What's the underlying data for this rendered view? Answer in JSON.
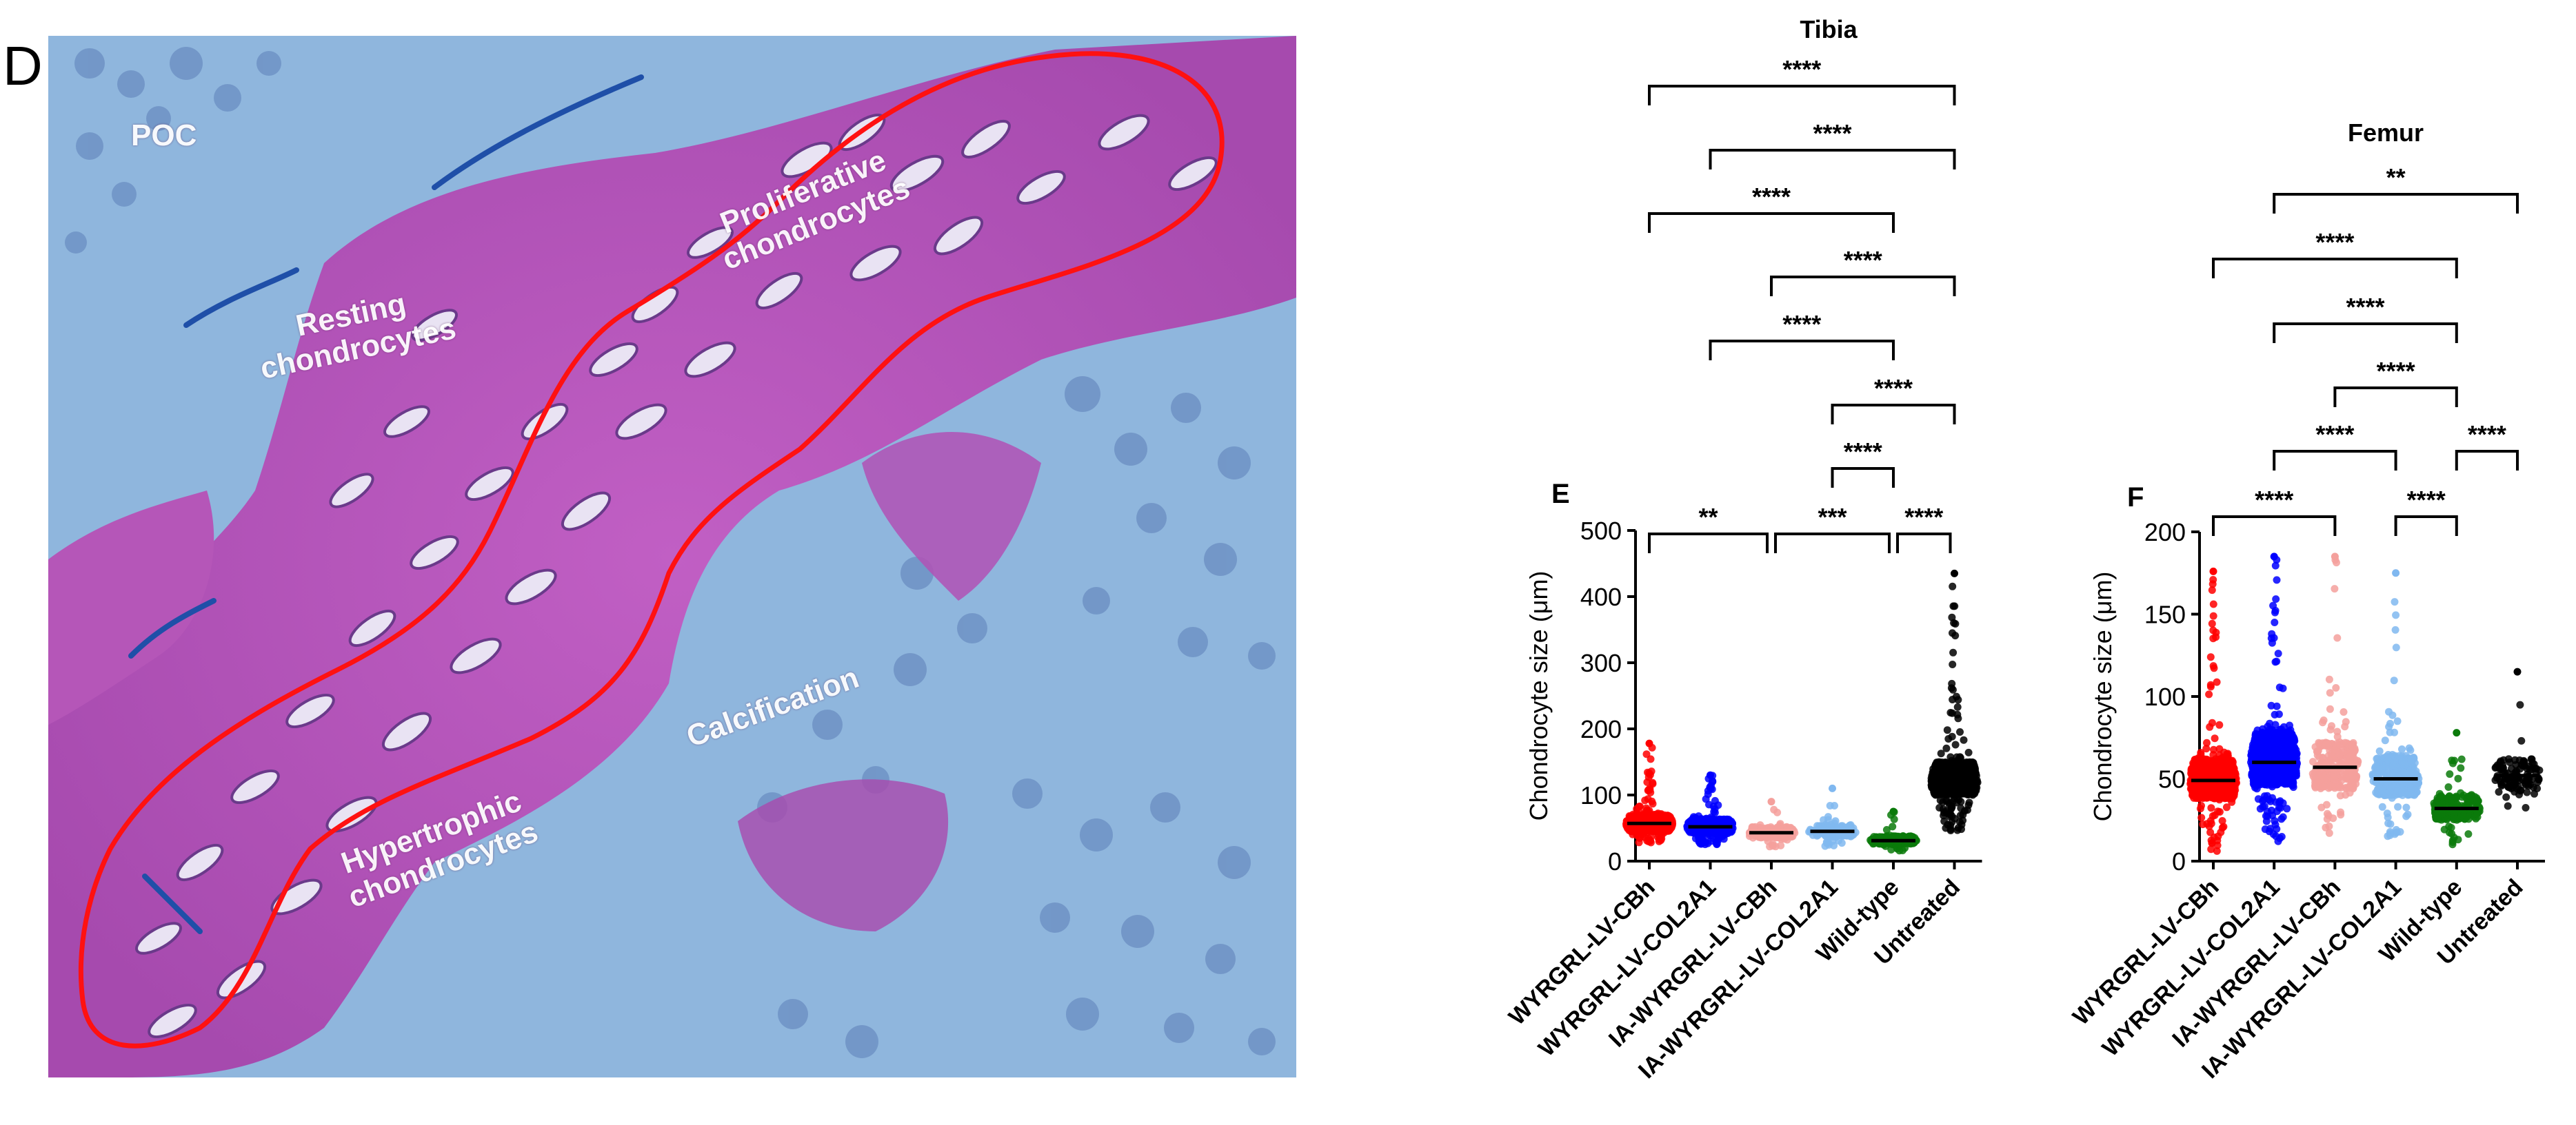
{
  "panel_labels": {
    "d": "D",
    "e": "E",
    "f": "F"
  },
  "micrograph_labels": {
    "poc": "POC",
    "resting": "Resting\nchondrocytes",
    "proliferative": "Proliferative\nchondrocytes",
    "calcification": "Calcification",
    "hypertrophic": "Hypertrophic\nchondrocytes"
  },
  "chart_data": [
    {
      "type": "scatter",
      "subtype": "dot-plot",
      "panel": "E",
      "title": "Tibia",
      "xlabel": "",
      "ylabel": "Chondrocyte size (μm)",
      "ylim": [
        0,
        500
      ],
      "yticks": [
        0,
        100,
        200,
        300,
        400,
        500
      ],
      "categories": [
        "WYRGRL-LV-CBh",
        "WYRGRL-LV-COL2A1",
        "IA-WYRGRL-LV-CBh",
        "IA-WYRGRL-LV-COL2A1",
        "Wild-type",
        "Untreated"
      ],
      "series": [
        {
          "color": "#ff0000",
          "median": 57,
          "min": 28,
          "q1": 45,
          "q3": 70,
          "max": 178,
          "n": 700
        },
        {
          "color": "#0000ff",
          "median": 52,
          "min": 25,
          "q1": 42,
          "q3": 64,
          "max": 130,
          "n": 550
        },
        {
          "color": "#f4a09c",
          "median": 43,
          "min": 22,
          "q1": 35,
          "q3": 52,
          "max": 90,
          "n": 160
        },
        {
          "color": "#80b8f0",
          "median": 45,
          "min": 22,
          "q1": 37,
          "q3": 54,
          "max": 110,
          "n": 160
        },
        {
          "color": "#0a7a0a",
          "median": 31,
          "min": 15,
          "q1": 26,
          "q3": 38,
          "max": 75,
          "n": 220
        },
        {
          "color": "#000000",
          "median": 122,
          "min": 45,
          "q1": 100,
          "q3": 150,
          "max": 435,
          "n": 800
        }
      ],
      "significance": [
        {
          "from": 0,
          "to": 5,
          "label": "****"
        },
        {
          "from": 1,
          "to": 5,
          "label": "****"
        },
        {
          "from": 0,
          "to": 4,
          "label": "****"
        },
        {
          "from": 2,
          "to": 5,
          "label": "****"
        },
        {
          "from": 1,
          "to": 4,
          "label": "****"
        },
        {
          "from": 3,
          "to": 5,
          "label": "****"
        },
        {
          "from": 3,
          "to": 4,
          "label": "****"
        },
        {
          "from": 0,
          "to": 2,
          "label": "**"
        },
        {
          "from": 2,
          "to": 4,
          "label": "***"
        },
        {
          "from": 4,
          "to": 5,
          "label": "****"
        }
      ],
      "grid": false
    },
    {
      "type": "scatter",
      "subtype": "dot-plot",
      "panel": "F",
      "title": "Femur",
      "xlabel": "",
      "ylabel": "Chondrocyte size (μm)",
      "ylim": [
        0,
        200
      ],
      "yticks": [
        0,
        50,
        100,
        150,
        200
      ],
      "categories": [
        "WYRGRL-LV-CBh",
        "WYRGRL-LV-COL2A1",
        "IA-WYRGRL-LV-CBh",
        "IA-WYRGRL-LV-COL2A1",
        "Wild-type",
        "Untreated"
      ],
      "series": [
        {
          "color": "#ff0000",
          "median": 49,
          "min": 2,
          "q1": 38,
          "q3": 62,
          "max": 176,
          "n": 800
        },
        {
          "color": "#0000ff",
          "median": 60,
          "min": 10,
          "q1": 46,
          "q3": 78,
          "max": 185,
          "n": 800
        },
        {
          "color": "#f4a09c",
          "median": 57,
          "min": 15,
          "q1": 44,
          "q3": 72,
          "max": 185,
          "n": 300
        },
        {
          "color": "#80b8f0",
          "median": 50,
          "min": 8,
          "q1": 40,
          "q3": 64,
          "max": 175,
          "n": 350
        },
        {
          "color": "#0a7a0a",
          "median": 32,
          "min": 10,
          "q1": 25,
          "q3": 40,
          "max": 78,
          "n": 220
        },
        {
          "color": "#000000",
          "median": 52,
          "min": 32,
          "q1": 44,
          "q3": 62,
          "max": 115,
          "n": 110
        }
      ],
      "significance": [
        {
          "from": 1,
          "to": 5,
          "label": "**"
        },
        {
          "from": 0,
          "to": 4,
          "label": "****"
        },
        {
          "from": 1,
          "to": 4,
          "label": "****"
        },
        {
          "from": 2,
          "to": 4,
          "label": "****"
        },
        {
          "from": 1,
          "to": 3,
          "label": "****"
        },
        {
          "from": 4,
          "to": 5,
          "label": "****"
        },
        {
          "from": 0,
          "to": 2,
          "label": "****"
        },
        {
          "from": 3,
          "to": 4,
          "label": "****"
        }
      ],
      "grid": false
    }
  ]
}
